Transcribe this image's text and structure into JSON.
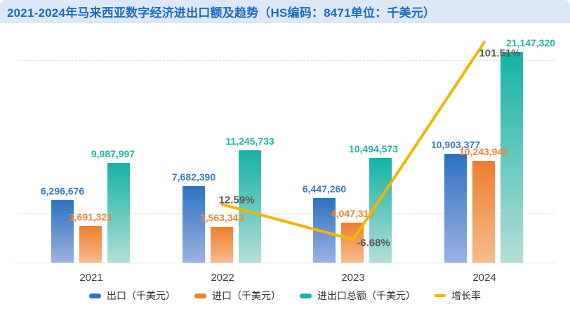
{
  "header": {
    "title": "2021-2024年马来西亚数字经济进出口额及趋势（HS编码：8471单位：千美元）"
  },
  "chart_data": {
    "type": "bar",
    "subtype": "grouped-bars-with-growth-line",
    "title": "2021-2024年马来西亚数字经济进出口额及趋势（HS编码：8471单位：千美元）",
    "categories": [
      "2021",
      "2022",
      "2023",
      "2024"
    ],
    "unit": "千美元",
    "grid": "dashed-horizontal",
    "y_axis_visible": false,
    "legend_position": "bottom",
    "series": [
      {
        "key": "export",
        "name": "出口（千美元）",
        "type": "bar",
        "color": "#2d72c0",
        "color_light": "#9cb2e0",
        "label_color": "#3a7ac5",
        "values": [
          6296676,
          7682390,
          6447260,
          10903377
        ],
        "labels": [
          "6,296,676",
          "7,682,390",
          "6,447,260",
          "10,903,377"
        ]
      },
      {
        "key": "import",
        "name": "进口（千美元）",
        "type": "bar",
        "color": "#ee7e2d",
        "color_light": "#f5bc8e",
        "label_color": "#ef8435",
        "values": [
          3691321,
          3563343,
          4047313,
          10243943
        ],
        "labels": [
          "3,691,321",
          "3,563,343",
          "4,047,313",
          "10,243,943"
        ]
      },
      {
        "key": "total",
        "name": "进出口总额（千美元）",
        "type": "bar",
        "color": "#14b3a4",
        "color_light": "#b4ded7",
        "label_color": "#2ab3a3",
        "values": [
          9987997,
          11245733,
          10494573,
          21147320
        ],
        "labels": [
          "9,987,997",
          "11,245,733",
          "10,494,573",
          "21,147,320"
        ]
      },
      {
        "key": "growth",
        "name": "增长率",
        "type": "line",
        "color": "#f7b500",
        "label_color": "#5a5a5c",
        "values": [
          null,
          12.59,
          -6.68,
          101.51
        ],
        "labels": [
          "",
          "12.59%",
          "-6.68%",
          "101.51%"
        ]
      }
    ]
  }
}
